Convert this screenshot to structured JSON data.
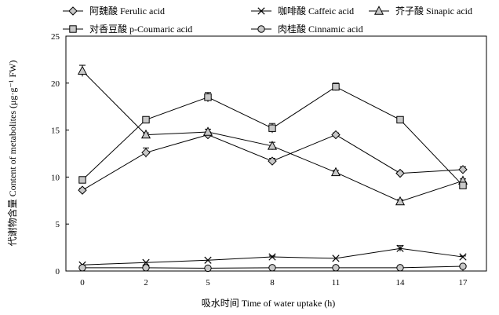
{
  "chart_data": {
    "type": "line",
    "xlabel": "吸水时间 Time of water uptake (h)",
    "ylabel": "代谢物含量 Content of metabolites (μg·g⁻¹ FW)",
    "x_ticks": [
      "0",
      "2",
      "5",
      "8",
      "11",
      "14",
      "17"
    ],
    "y_ticks": [
      "0",
      "5",
      "10",
      "15",
      "20",
      "25"
    ],
    "ylim": [
      0,
      25
    ],
    "legend_position": "top",
    "series": [
      {
        "name": "阿魏酸 Ferulic acid",
        "marker": "diamond",
        "values": [
          8.6,
          12.6,
          14.5,
          11.7,
          14.5,
          10.4,
          10.8
        ],
        "errors": [
          0.2,
          0.5,
          0.3,
          0.3,
          0.2,
          0.2,
          0.3
        ]
      },
      {
        "name": "咖啡酸 Caffeic acid",
        "marker": "x",
        "values": [
          0.65,
          0.9,
          1.15,
          1.5,
          1.35,
          2.4,
          1.5
        ],
        "errors": [
          0.05,
          0.05,
          0.05,
          0.1,
          0.05,
          0.3,
          0.1
        ]
      },
      {
        "name": "芥子酸 Sinapic acid",
        "marker": "triangle",
        "values": [
          21.3,
          14.5,
          14.8,
          13.3,
          10.5,
          7.4,
          9.6
        ],
        "errors": [
          0.6,
          0.2,
          0.3,
          0.4,
          0.2,
          0.2,
          0.2
        ]
      },
      {
        "name": "对香豆酸 p-Coumaric acid",
        "marker": "square",
        "values": [
          9.7,
          16.1,
          18.5,
          15.2,
          19.6,
          16.1,
          9.1
        ],
        "errors": [
          0.2,
          0.2,
          0.5,
          0.5,
          0.4,
          0.2,
          0.3
        ]
      },
      {
        "name": "肉桂酸 Cinnamic acid",
        "marker": "circle",
        "values": [
          0.35,
          0.35,
          0.3,
          0.35,
          0.35,
          0.35,
          0.5
        ],
        "errors": [
          0.02,
          0.02,
          0.02,
          0.02,
          0.02,
          0.02,
          0.02
        ]
      }
    ]
  },
  "colors": {
    "line": "#000000",
    "fill": "#c8c8c8"
  }
}
